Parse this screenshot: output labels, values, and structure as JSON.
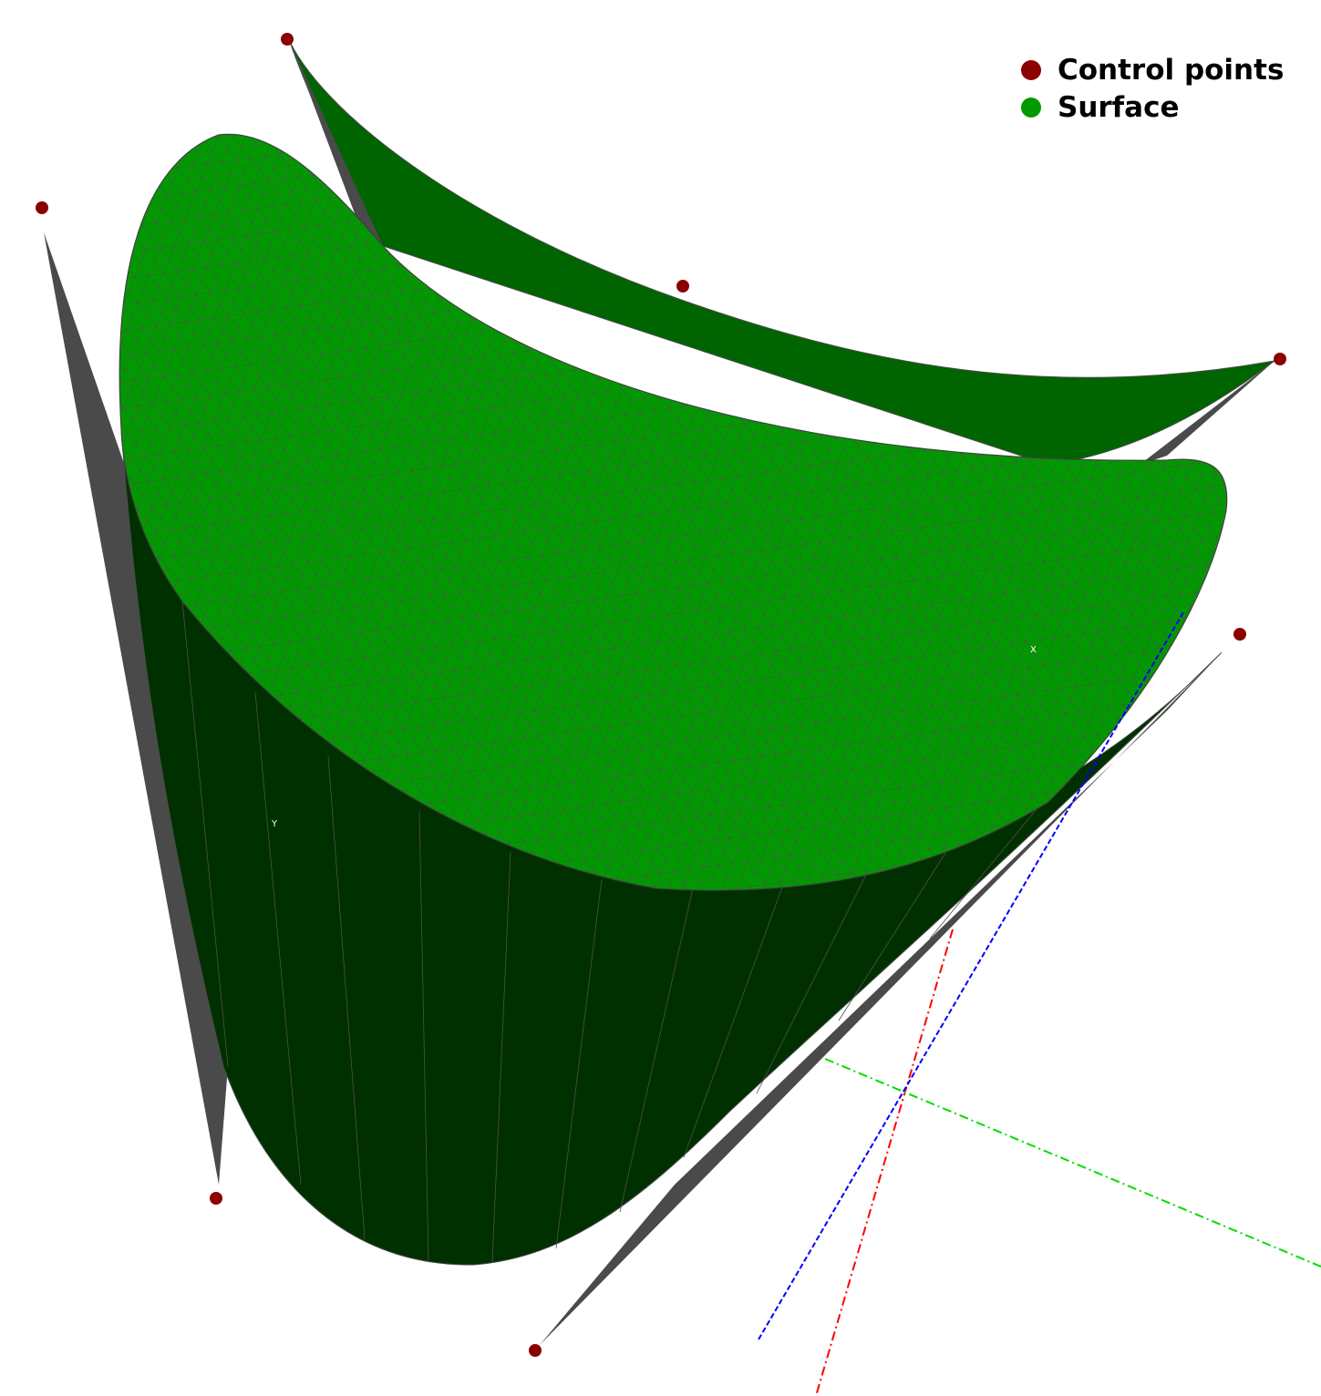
{
  "legend": {
    "control_points": {
      "label": "Control points",
      "color": "#8b0000"
    },
    "surface": {
      "label": "Surface",
      "color": "#009900"
    }
  },
  "axes": {
    "x_label": "X",
    "y_label": "Y",
    "x_color": "#ff0000",
    "y_color": "#00dd00",
    "z_color": "#0000ff"
  },
  "colors": {
    "surface_light": "#009a00",
    "surface_mid": "#006400",
    "surface_dark": "#003000",
    "wire": "#4a4a4a"
  }
}
